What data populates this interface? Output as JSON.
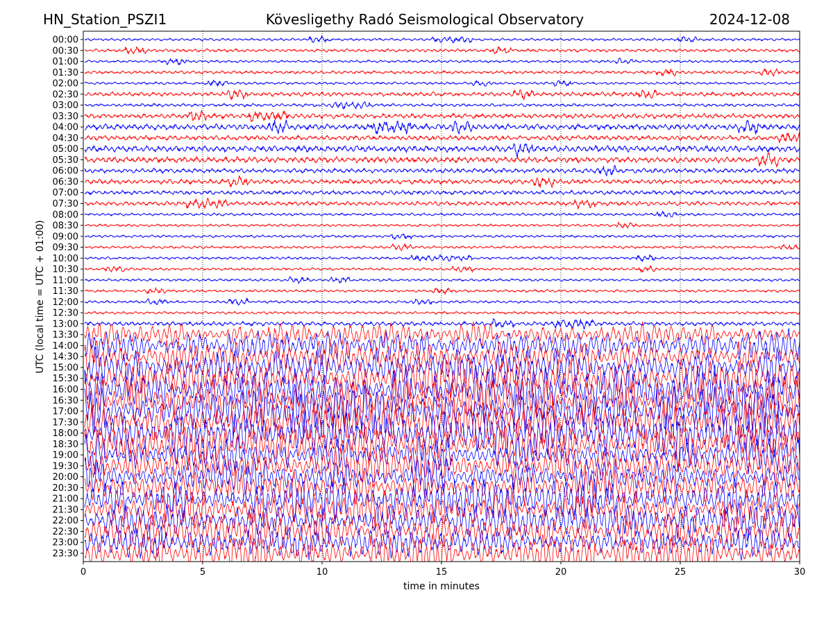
{
  "chart_data": {
    "type": "line",
    "title_left": "HN_Station_PSZI1",
    "title": "Kövesligethy Radó Seismological Observatory",
    "title_right": "2024-12-08",
    "xlabel": "time in minutes",
    "ylabel": "UTC (local time = UTC + 01:00)",
    "xlim": [
      0,
      30
    ],
    "xticks": [
      "0",
      "5",
      "10",
      "15",
      "20",
      "25",
      "30"
    ],
    "xtick_values": [
      0,
      5,
      10,
      15,
      20,
      25,
      30
    ],
    "grid": "vertical dotted",
    "series_colors": [
      "#0000ff",
      "#ff0000"
    ],
    "rows": [
      "00:00",
      "00:30",
      "01:00",
      "01:30",
      "02:00",
      "02:30",
      "03:00",
      "03:30",
      "04:00",
      "04:30",
      "05:00",
      "05:30",
      "06:00",
      "06:30",
      "07:00",
      "07:30",
      "08:00",
      "08:30",
      "09:00",
      "09:30",
      "10:00",
      "10:30",
      "11:00",
      "11:30",
      "12:00",
      "12:30",
      "13:00",
      "13:30",
      "14:00",
      "14:30",
      "15:00",
      "15:30",
      "16:00",
      "16:30",
      "17:00",
      "17:30",
      "18:00",
      "18:30",
      "19:00",
      "19:30",
      "20:00",
      "20:30",
      "21:00",
      "21:30",
      "22:00",
      "22:30",
      "23:00",
      "23:30"
    ],
    "relative_amplitude": [
      1.0,
      1.2,
      1.0,
      1.2,
      1.0,
      1.6,
      1.2,
      1.8,
      2.2,
      1.8,
      2.4,
      2.2,
      1.8,
      1.8,
      1.6,
      1.6,
      1.0,
      1.0,
      1.0,
      1.0,
      1.0,
      1.0,
      1.0,
      1.0,
      1.0,
      1.0,
      1.6,
      7,
      9,
      10,
      12,
      13,
      14,
      15,
      15,
      14,
      14,
      13,
      12,
      12,
      12,
      12,
      12,
      11,
      11,
      11,
      10,
      11
    ]
  }
}
